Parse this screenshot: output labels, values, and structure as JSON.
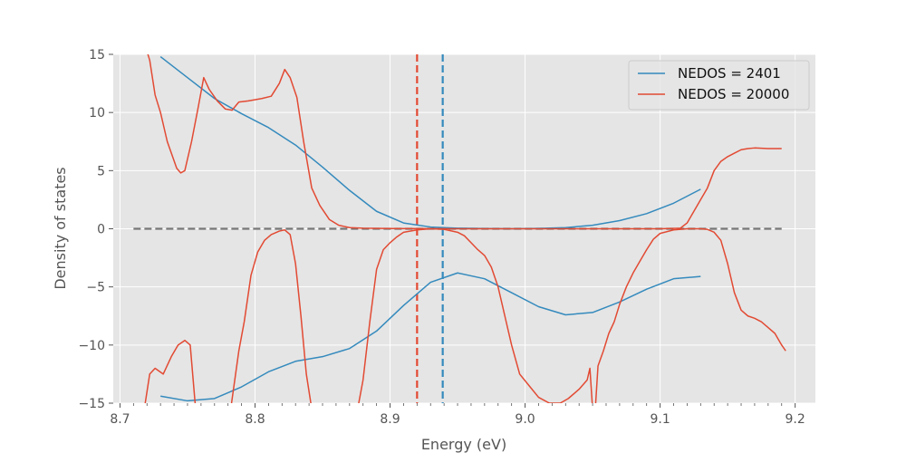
{
  "chart_data": {
    "type": "line",
    "title": "",
    "xlabel": "Energy (eV)",
    "ylabel": "Density of states",
    "xlim": [
      8.695,
      9.215
    ],
    "ylim": [
      -15,
      15
    ],
    "x_ticks": [
      8.7,
      8.8,
      8.9,
      9.0,
      9.1,
      9.2
    ],
    "x_tick_labels": [
      "8.7",
      "8.8",
      "8.9",
      "9.0",
      "9.1",
      "9.2"
    ],
    "y_ticks": [
      -15,
      -10,
      -5,
      0,
      5,
      10,
      15
    ],
    "y_tick_labels": [
      "−15",
      "−10",
      "−5",
      "0",
      "5",
      "10",
      "15"
    ],
    "grid": true,
    "legend_position": "top-right",
    "colors": {
      "nedos_2401": "#348ABD",
      "nedos_20000": "#E24A33",
      "zero_line": "#777777",
      "background": "#E5E5E5"
    },
    "series": [
      {
        "name": "NEDOS = 2401",
        "color": "#348ABD",
        "up": [
          [
            8.73,
            14.8
          ],
          [
            8.75,
            13.0
          ],
          [
            8.77,
            11.2
          ],
          [
            8.79,
            9.9
          ],
          [
            8.81,
            8.7
          ],
          [
            8.83,
            7.2
          ],
          [
            8.85,
            5.3
          ],
          [
            8.87,
            3.3
          ],
          [
            8.89,
            1.5
          ],
          [
            8.91,
            0.5
          ],
          [
            8.93,
            0.15
          ],
          [
            8.95,
            0.05
          ],
          [
            8.97,
            0.02
          ],
          [
            8.99,
            0.0
          ],
          [
            9.01,
            0.03
          ],
          [
            9.03,
            0.1
          ],
          [
            9.05,
            0.3
          ],
          [
            9.07,
            0.7
          ],
          [
            9.09,
            1.3
          ],
          [
            9.11,
            2.2
          ],
          [
            9.13,
            3.4
          ]
        ],
        "down": [
          [
            8.73,
            -14.4
          ],
          [
            8.75,
            -14.8
          ],
          [
            8.77,
            -14.6
          ],
          [
            8.79,
            -13.6
          ],
          [
            8.81,
            -12.3
          ],
          [
            8.83,
            -11.4
          ],
          [
            8.85,
            -11.0
          ],
          [
            8.87,
            -10.3
          ],
          [
            8.89,
            -8.8
          ],
          [
            8.91,
            -6.6
          ],
          [
            8.93,
            -4.6
          ],
          [
            8.95,
            -3.8
          ],
          [
            8.97,
            -4.3
          ],
          [
            8.99,
            -5.5
          ],
          [
            9.01,
            -6.7
          ],
          [
            9.03,
            -7.4
          ],
          [
            9.05,
            -7.2
          ],
          [
            9.07,
            -6.3
          ],
          [
            9.09,
            -5.2
          ],
          [
            9.11,
            -4.3
          ],
          [
            9.13,
            -4.1
          ]
        ]
      },
      {
        "name": "NEDOS = 20000",
        "color": "#E24A33",
        "up": [
          [
            8.718,
            16.0
          ],
          [
            8.722,
            14.5
          ],
          [
            8.726,
            11.5
          ],
          [
            8.73,
            10.0
          ],
          [
            8.735,
            7.5
          ],
          [
            8.742,
            5.2
          ],
          [
            8.745,
            4.8
          ],
          [
            8.748,
            5.0
          ],
          [
            8.753,
            7.5
          ],
          [
            8.758,
            10.5
          ],
          [
            8.762,
            13.0
          ],
          [
            8.766,
            12.0
          ],
          [
            8.772,
            11.0
          ],
          [
            8.778,
            10.3
          ],
          [
            8.783,
            10.2
          ],
          [
            8.788,
            10.9
          ],
          [
            8.795,
            11.0
          ],
          [
            8.805,
            11.2
          ],
          [
            8.812,
            11.4
          ],
          [
            8.818,
            12.5
          ],
          [
            8.822,
            13.7
          ],
          [
            8.826,
            13.0
          ],
          [
            8.831,
            11.3
          ],
          [
            8.836,
            7.5
          ],
          [
            8.842,
            3.5
          ],
          [
            8.848,
            2.0
          ],
          [
            8.855,
            0.8
          ],
          [
            8.862,
            0.3
          ],
          [
            8.87,
            0.1
          ],
          [
            8.88,
            0.05
          ],
          [
            8.9,
            0.02
          ],
          [
            8.95,
            0.0
          ],
          [
            9.0,
            0.0
          ],
          [
            9.05,
            0.0
          ],
          [
            9.1,
            0.0
          ],
          [
            9.115,
            0.05
          ],
          [
            9.12,
            0.5
          ],
          [
            9.125,
            1.5
          ],
          [
            9.13,
            2.5
          ],
          [
            9.135,
            3.5
          ],
          [
            9.14,
            5.0
          ],
          [
            9.145,
            5.8
          ],
          [
            9.15,
            6.2
          ],
          [
            9.155,
            6.5
          ],
          [
            9.16,
            6.8
          ],
          [
            9.165,
            6.9
          ],
          [
            9.17,
            6.95
          ],
          [
            9.18,
            6.9
          ],
          [
            9.19,
            6.9
          ]
        ],
        "down": [
          [
            8.718,
            -15.5
          ],
          [
            8.722,
            -12.5
          ],
          [
            8.726,
            -12.0
          ],
          [
            8.732,
            -12.5
          ],
          [
            8.738,
            -11.0
          ],
          [
            8.743,
            -10.0
          ],
          [
            8.748,
            -9.6
          ],
          [
            8.752,
            -10.0
          ],
          [
            8.756,
            -15.5
          ],
          [
            8.782,
            -15.5
          ],
          [
            8.788,
            -10.5
          ],
          [
            8.792,
            -8.0
          ],
          [
            8.797,
            -4.0
          ],
          [
            8.802,
            -2.0
          ],
          [
            8.807,
            -1.0
          ],
          [
            8.812,
            -0.5
          ],
          [
            8.818,
            -0.2
          ],
          [
            8.822,
            -0.1
          ],
          [
            8.826,
            -0.5
          ],
          [
            8.83,
            -3.0
          ],
          [
            8.834,
            -7.5
          ],
          [
            8.838,
            -12.5
          ],
          [
            8.842,
            -15.5
          ],
          [
            8.876,
            -15.5
          ],
          [
            8.88,
            -13.0
          ],
          [
            8.885,
            -8.0
          ],
          [
            8.89,
            -3.5
          ],
          [
            8.895,
            -1.8
          ],
          [
            8.9,
            -1.2
          ],
          [
            8.905,
            -0.7
          ],
          [
            8.91,
            -0.3
          ],
          [
            8.92,
            -0.1
          ],
          [
            8.93,
            -0.0
          ],
          [
            8.94,
            -0.05
          ],
          [
            8.95,
            -0.3
          ],
          [
            8.955,
            -0.6
          ],
          [
            8.96,
            -1.2
          ],
          [
            8.965,
            -1.8
          ],
          [
            8.97,
            -2.3
          ],
          [
            8.975,
            -3.3
          ],
          [
            8.98,
            -5.0
          ],
          [
            8.985,
            -7.5
          ],
          [
            8.99,
            -10.0
          ],
          [
            8.996,
            -12.5
          ],
          [
            9.003,
            -13.5
          ],
          [
            9.01,
            -14.5
          ],
          [
            9.018,
            -15.0
          ],
          [
            9.026,
            -15.0
          ],
          [
            9.032,
            -14.6
          ],
          [
            9.04,
            -13.8
          ],
          [
            9.046,
            -13.0
          ],
          [
            9.048,
            -12.0
          ],
          [
            9.05,
            -15.5
          ],
          [
            9.05,
            -15.5
          ],
          [
            9.052,
            -15.5
          ],
          [
            9.054,
            -11.8
          ],
          [
            9.058,
            -10.5
          ],
          [
            9.062,
            -9.0
          ],
          [
            9.066,
            -8.0
          ],
          [
            9.07,
            -6.5
          ],
          [
            9.075,
            -5.0
          ],
          [
            9.08,
            -3.8
          ],
          [
            9.085,
            -2.8
          ],
          [
            9.09,
            -1.8
          ],
          [
            9.095,
            -0.9
          ],
          [
            9.1,
            -0.4
          ],
          [
            9.11,
            -0.1
          ],
          [
            9.12,
            0.0
          ],
          [
            9.13,
            0.0
          ],
          [
            9.135,
            -0.05
          ],
          [
            9.14,
            -0.3
          ],
          [
            9.145,
            -1.0
          ],
          [
            9.15,
            -3.0
          ],
          [
            9.155,
            -5.5
          ],
          [
            9.16,
            -7.0
          ],
          [
            9.165,
            -7.5
          ],
          [
            9.17,
            -7.7
          ],
          [
            9.175,
            -8.0
          ],
          [
            9.18,
            -8.5
          ],
          [
            9.185,
            -9.0
          ],
          [
            9.19,
            -10.0
          ],
          [
            9.193,
            -10.5
          ]
        ]
      }
    ],
    "reference_lines": [
      {
        "orientation": "horizontal",
        "y": 0,
        "x_range": [
          8.71,
          9.19
        ],
        "color": "#777777",
        "style": "dashed"
      },
      {
        "orientation": "vertical",
        "x": 8.92,
        "color": "#E24A33",
        "style": "dashed"
      },
      {
        "orientation": "vertical",
        "x": 8.939,
        "color": "#348ABD",
        "style": "dashed"
      }
    ]
  }
}
